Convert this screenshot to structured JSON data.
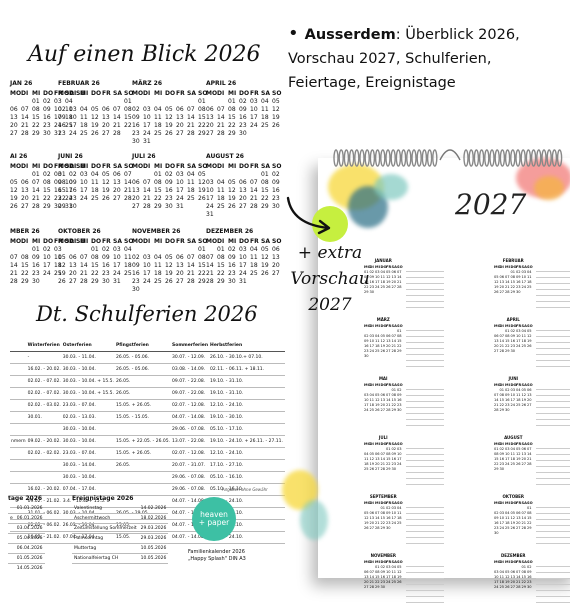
{
  "left": {
    "title_glance": "Auf einen Blick 2026",
    "title_holidays": "Dt. Schulferien 2026",
    "day_headers": [
      "MO",
      "DI",
      "MI",
      "DO",
      "FR",
      "SA",
      "SO"
    ],
    "months": [
      {
        "name": "JAN 26",
        "rows": [
          [
            "",
            "",
            "01",
            "02",
            "03",
            "04",
            ""
          ],
          [
            "06",
            "07",
            "08",
            "09",
            "10",
            "11",
            ""
          ],
          [
            "13",
            "14",
            "15",
            "16",
            "17",
            "18",
            ""
          ],
          [
            "20",
            "21",
            "22",
            "23",
            "24",
            "25",
            ""
          ],
          [
            "27",
            "28",
            "29",
            "30",
            "31",
            "",
            ""
          ]
        ]
      },
      {
        "name": "FEBRUAR 26",
        "rows": [
          [
            "",
            "",
            "",
            "",
            "",
            "",
            "01"
          ],
          [
            "02",
            "03",
            "04",
            "05",
            "06",
            "07",
            "08"
          ],
          [
            "09",
            "10",
            "11",
            "12",
            "13",
            "14",
            "15"
          ],
          [
            "16",
            "17",
            "18",
            "19",
            "20",
            "21",
            "22"
          ],
          [
            "23",
            "24",
            "25",
            "26",
            "27",
            "28",
            ""
          ]
        ]
      },
      {
        "name": "MÄRZ 26",
        "rows": [
          [
            "",
            "",
            "",
            "",
            "",
            "",
            "01"
          ],
          [
            "02",
            "03",
            "04",
            "05",
            "06",
            "07",
            "08"
          ],
          [
            "09",
            "10",
            "11",
            "12",
            "13",
            "14",
            "15"
          ],
          [
            "16",
            "17",
            "18",
            "19",
            "20",
            "21",
            "22"
          ],
          [
            "23",
            "24",
            "25",
            "26",
            "27",
            "28",
            "29"
          ],
          [
            "30",
            "31",
            "",
            "",
            "",
            "",
            ""
          ]
        ]
      },
      {
        "name": "APRIL 26",
        "rows": [
          [
            "",
            "",
            "01",
            "02",
            "03",
            "04",
            "05"
          ],
          [
            "06",
            "07",
            "08",
            "09",
            "10",
            "11",
            "12"
          ],
          [
            "13",
            "14",
            "15",
            "16",
            "17",
            "18",
            "19"
          ],
          [
            "20",
            "21",
            "22",
            "23",
            "24",
            "25",
            "26"
          ],
          [
            "27",
            "28",
            "29",
            "30",
            "",
            "",
            ""
          ]
        ]
      },
      {
        "name": "AI 26",
        "rows": [
          [
            "",
            "",
            "01",
            "02",
            "03",
            "",
            ""
          ],
          [
            "05",
            "06",
            "07",
            "08",
            "09",
            "10",
            ""
          ],
          [
            "12",
            "13",
            "14",
            "15",
            "16",
            "17",
            ""
          ],
          [
            "19",
            "20",
            "21",
            "22",
            "23",
            "24",
            ""
          ],
          [
            "26",
            "27",
            "28",
            "29",
            "30",
            "31",
            ""
          ]
        ]
      },
      {
        "name": "JUNI 26",
        "rows": [
          [
            "01",
            "02",
            "03",
            "04",
            "05",
            "06",
            "07"
          ],
          [
            "08",
            "09",
            "10",
            "11",
            "12",
            "13",
            "14"
          ],
          [
            "15",
            "16",
            "17",
            "18",
            "19",
            "20",
            "21"
          ],
          [
            "22",
            "23",
            "24",
            "25",
            "26",
            "27",
            "28"
          ],
          [
            "29",
            "30",
            "",
            "",
            "",
            "",
            ""
          ]
        ]
      },
      {
        "name": "JULI 26",
        "rows": [
          [
            "",
            "",
            "01",
            "02",
            "03",
            "04",
            "05"
          ],
          [
            "06",
            "07",
            "08",
            "09",
            "10",
            "11",
            "12"
          ],
          [
            "13",
            "14",
            "15",
            "16",
            "17",
            "18",
            "19"
          ],
          [
            "20",
            "21",
            "22",
            "23",
            "24",
            "25",
            "26"
          ],
          [
            "27",
            "28",
            "29",
            "30",
            "31",
            "",
            ""
          ]
        ]
      },
      {
        "name": "AUGUST 26",
        "rows": [
          [
            "",
            "",
            "",
            "",
            "",
            "01",
            "02"
          ],
          [
            "03",
            "04",
            "05",
            "06",
            "07",
            "08",
            "09"
          ],
          [
            "10",
            "11",
            "12",
            "13",
            "14",
            "15",
            "16"
          ],
          [
            "17",
            "18",
            "19",
            "20",
            "21",
            "22",
            "23"
          ],
          [
            "24",
            "25",
            "26",
            "27",
            "28",
            "29",
            "30"
          ],
          [
            "31",
            "",
            "",
            "",
            "",
            "",
            ""
          ]
        ]
      },
      {
        "name": "MBER 26",
        "rows": [
          [
            "",
            "",
            "01",
            "02",
            "03",
            "",
            ""
          ],
          [
            "07",
            "08",
            "09",
            "10",
            "11",
            "",
            ""
          ],
          [
            "14",
            "15",
            "16",
            "17",
            "18",
            "",
            ""
          ],
          [
            "21",
            "22",
            "23",
            "24",
            "25",
            "",
            ""
          ],
          [
            "28",
            "29",
            "30",
            "",
            "",
            "",
            ""
          ]
        ]
      },
      {
        "name": "OKTOBER 26",
        "rows": [
          [
            "",
            "",
            "",
            "01",
            "02",
            "03",
            "04"
          ],
          [
            "05",
            "06",
            "07",
            "08",
            "09",
            "10",
            "11"
          ],
          [
            "12",
            "13",
            "14",
            "15",
            "16",
            "17",
            "18"
          ],
          [
            "19",
            "20",
            "21",
            "22",
            "23",
            "24",
            "25"
          ],
          [
            "26",
            "27",
            "28",
            "29",
            "30",
            "31",
            ""
          ]
        ]
      },
      {
        "name": "NOVEMBER 26",
        "rows": [
          [
            "",
            "",
            "",
            "",
            "",
            "",
            "01"
          ],
          [
            "02",
            "03",
            "04",
            "05",
            "06",
            "07",
            "08"
          ],
          [
            "09",
            "10",
            "11",
            "12",
            "13",
            "14",
            "15"
          ],
          [
            "16",
            "17",
            "18",
            "19",
            "20",
            "21",
            "22"
          ],
          [
            "23",
            "24",
            "25",
            "26",
            "27",
            "28",
            "29"
          ],
          [
            "30",
            "",
            "",
            "",
            "",
            "",
            ""
          ]
        ]
      },
      {
        "name": "DEZEMBER 26",
        "rows": [
          [
            "",
            "01",
            "02",
            "03",
            "04",
            "05",
            "06"
          ],
          [
            "07",
            "08",
            "09",
            "10",
            "11",
            "12",
            "13"
          ],
          [
            "14",
            "15",
            "16",
            "17",
            "18",
            "19",
            "20"
          ],
          [
            "21",
            "22",
            "23",
            "24",
            "25",
            "26",
            "27"
          ],
          [
            "28",
            "29",
            "30",
            "31",
            "",
            "",
            ""
          ]
        ]
      }
    ],
    "holiday_table": {
      "headers": [
        "",
        "Winterferien",
        "Osterferien",
        "Pfingstferien",
        "Sommerferien",
        "Herbstferien",
        "Weihnachten"
      ],
      "rows": [
        [
          "",
          "-",
          "30.03. - 11.04.",
          "26.05. - 05.06.",
          "30.07. - 12.09.",
          "26.10. - 30.10.+ 07.10.",
          "23.12. - 09.01."
        ],
        [
          "",
          "16.02. - 20.02.",
          "30.03. - 10.04.",
          "26.05. - 05.06.",
          "03.08. - 14.09.",
          "02.11. - 06.11. + 18.11.",
          "24.12. - 08.01."
        ],
        [
          "",
          "02.02. - 07.02.",
          "30.03. - 10.04. + 15.5.",
          "26.05.",
          "09.07. - 22.08.",
          "19.10. - 31.10.",
          "23.12. - 02.01."
        ],
        [
          "",
          "02.02. - 07.02.",
          "30.03. - 10.04. + 15.5.",
          "26.05.",
          "09.07. - 22.08.",
          "19.10. - 31.10.",
          "23.12. - 02.01."
        ],
        [
          "",
          "02.02. - 03.02.",
          "23.03. - 07.04.",
          "15.05. + 26.05.",
          "02.07. - 12.08.",
          "12.10. - 24.10.",
          "23.12. - 09.01."
        ],
        [
          "",
          "30.01.",
          "02.03. - 13.03.",
          "15.05. - 15.05.",
          "04.07. - 14.08.",
          "19.10. - 30.10.",
          "21.12. - 02.01."
        ],
        [
          "",
          "",
          "30.03. - 10.04.",
          "",
          "29.06. - 07.08.",
          "05.10. - 17.10.",
          "23.12. - 02.01."
        ],
        [
          "nmern",
          "09.02. - 20.02.",
          "30.03. - 10.04.",
          "15.05. + 22.05. - 26.05.",
          "13.07. - 22.08.",
          "19.10. - 24.10. + 26.11. - 27.11.",
          "19.12. - 02.01."
        ],
        [
          "",
          "02.02. - 02.02.",
          "23.03. - 07.04.",
          "15.05. + 26.05.",
          "02.07. - 12.08.",
          "12.10. - 24.10.",
          "23.12. - 02.01."
        ],
        [
          "",
          "",
          "30.03. - 14.04.",
          "26.05.",
          "20.07. - 31.07.",
          "17.10. - 27.10.",
          "23.12. - 06.01."
        ],
        [
          "",
          "",
          "30.03. - 10.04.",
          "",
          "29.06. - 07.08.",
          "05.10. - 16.10.",
          "23.12. - 02.01."
        ],
        [
          "",
          "16.02. - 20.02.",
          "07.04. - 17.04.",
          "",
          "29.06. - 07.08.",
          "05.10. - 16.10.",
          "18.12. - 02.01."
        ],
        [
          "",
          "09.02. - 21.02.",
          "3.4. - 10.4. + 15.5.",
          "",
          "04.07. - 14.08.",
          "12.10. - 24.10.",
          "23.12. - 02.01."
        ],
        [
          "",
          "31.01. - 06.02.",
          "30.03. - 10.04.",
          "26.05. - 29.05.",
          "04.07. - 14.08.",
          "19.10. - 30.10.",
          "21.12. - 02.01."
        ],
        [
          "",
          "02.02. - 06.02.",
          "26.03. - 10.04.",
          "15.05.",
          "04.07. - 14.08.",
          "12.10. - 24.10.",
          "23.12. - 02.01."
        ],
        [
          "",
          "16.02. - 21.02.",
          "07.04. - 17.04.",
          "15.05.",
          "04.07. - 14.08.",
          "12.10. - 24.10.",
          "23.12. - 02.01."
        ]
      ]
    },
    "table_note": "Angaben ohne Gewähr",
    "feiertage": {
      "title": "tage 2026",
      "rows": [
        [
          "",
          "01.01.2026"
        ],
        [
          "e",
          "06.01.2026"
        ],
        [
          "",
          "03.04.2026"
        ],
        [
          "",
          "05.04.2026"
        ],
        [
          "",
          "06.04.2026"
        ],
        [
          "",
          "01.05.2026"
        ],
        [
          "",
          "14.05.2026"
        ]
      ]
    },
    "ereignistage": {
      "title": "Ereignistage 2026",
      "rows": [
        [
          "Valentinstag",
          "14.02.2026"
        ],
        [
          "Aschermittwoch",
          "18.02.2026"
        ],
        [
          "Zeitumstellung Sommerzeit",
          "29.03.2026"
        ],
        [
          "Palmsonntag",
          "29.03.2026"
        ],
        [
          "Muttertag",
          "10.05.2026"
        ],
        [
          "Nationalfeiertag CH",
          "10.05.2026"
        ],
        [
          "",
          ""
        ],
        [
          "Nationalfeiertag AT",
          "26.10.2026"
        ]
      ]
    },
    "logo": {
      "line1": "heaven",
      "line2": "+ paper"
    },
    "product": {
      "line1": "Familienkalender 2026",
      "line2": "„Happy Splash\" DIN A3"
    }
  },
  "right": {
    "bullet_bold": "Ausserdem",
    "bullet_text": ": Überblick 2026, Vorschau 2027, Schulferien, Feiertage, Ereignistage",
    "extra_line1": "+ extra",
    "extra_line2": "Vorschau",
    "extra_line3": "2027",
    "year": "2027",
    "preview_months": [
      "JANUAR",
      "FEBRUAR",
      "MÄRZ",
      "APRIL",
      "MAI",
      "JUNI",
      "JULI",
      "AUGUST",
      "SEPTEMBER",
      "OKTOBER",
      "NOVEMBER",
      "DEZEMBER"
    ],
    "colors": {
      "accent_green": "#c6ef3f",
      "logo_teal": "#3dc0a4"
    }
  }
}
